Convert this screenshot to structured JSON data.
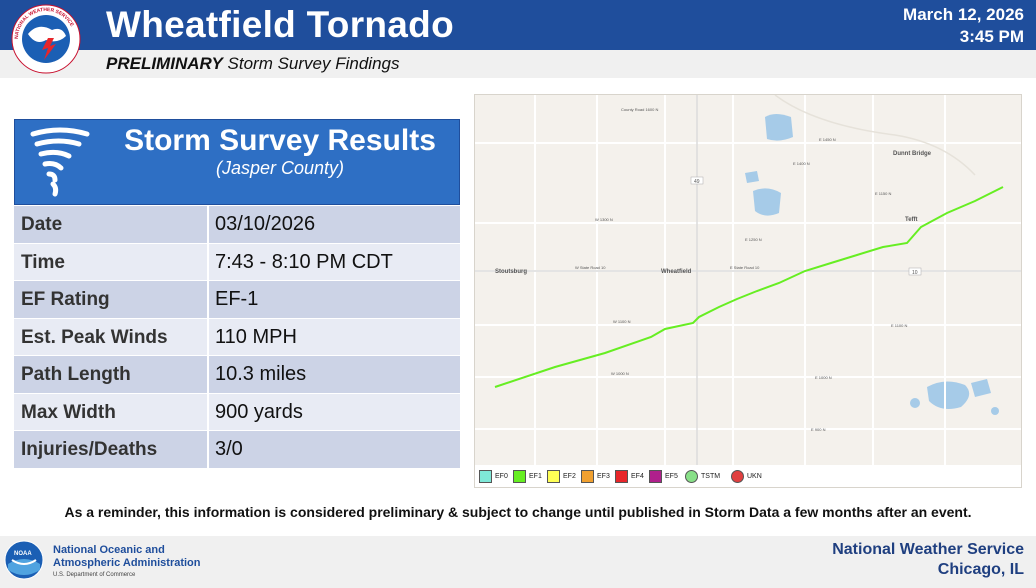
{
  "header": {
    "title": "Wheatfield Tornado",
    "date": "March 12, 2026",
    "time": "3:45 PM",
    "subtitle_bold": "PRELIMINARY",
    "subtitle_rest": " Storm Survey Findings",
    "logo_text": "NATIONAL WEATHER SERVICE"
  },
  "results": {
    "heading": "Storm Survey Results",
    "county": "(Jasper County)"
  },
  "facts": [
    {
      "label": "Date",
      "value": "03/10/2026"
    },
    {
      "label": "Time",
      "value": "7:43 - 8:10 PM CDT"
    },
    {
      "label": "EF Rating",
      "value": "EF-1"
    },
    {
      "label": "Est. Peak Winds",
      "value": "110 MPH"
    },
    {
      "label": "Path Length",
      "value": "10.3 miles"
    },
    {
      "label": "Max Width",
      "value": "900 yards"
    },
    {
      "label": "Injuries/Deaths",
      "value": "3/0"
    }
  ],
  "map": {
    "places": {
      "stoutsburg": "Stoutsburg",
      "wheatfield": "Wheatfield",
      "tefft": "Tefft",
      "dunnt_bridge": "Dunnt Bridge"
    },
    "roads": {
      "state_road_w": "W State Road 10",
      "state_road_e": "E State Road 10",
      "w1300n": "W 1300 N",
      "w1100n": "W 1100 N",
      "w1000n": "W 1000 N",
      "e1250n": "E 1250 N",
      "e1100n": "E 1100 N",
      "e1000n": "E 1000 N",
      "e900n": "E 900 N",
      "e1400n": "E 1400 N",
      "e1450n": "E 1450 N",
      "e1150n": "E 1150 N",
      "county_road": "County Road 1600 N",
      "route_10": "10",
      "route_49": "49"
    },
    "track_color": "#66ee22",
    "legend": [
      {
        "label": "EF0",
        "color": "#7fe8d8"
      },
      {
        "label": "EF1",
        "color": "#66ee22"
      },
      {
        "label": "EF2",
        "color": "#ffff55"
      },
      {
        "label": "EF3",
        "color": "#f0a030"
      },
      {
        "label": "EF4",
        "color": "#e8262a"
      },
      {
        "label": "EF5",
        "color": "#b0208c"
      },
      {
        "label": "TSTM",
        "color": "#88e088"
      },
      {
        "label": "UKN",
        "color": "#e04040"
      }
    ]
  },
  "reminder": "As a reminder, this information is considered preliminary & subject to change until published in Storm Data a few months after an event.",
  "footer": {
    "noaa_line1": "National Oceanic and",
    "noaa_line2": "Atmospheric Administration",
    "noaa_dept": "U.S. Department of Commerce",
    "noaa_badge": "NOAA",
    "nws": "National Weather Service",
    "location": "Chicago, IL"
  }
}
